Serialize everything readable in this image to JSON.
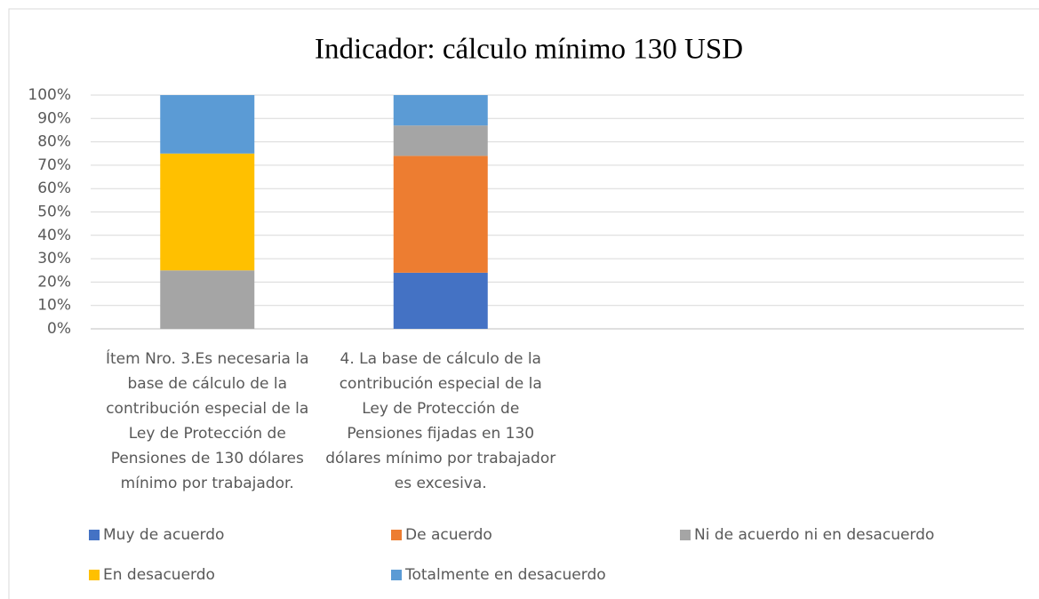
{
  "chart_data": {
    "type": "bar",
    "stacked": true,
    "title": "Indicador: cálculo mínimo 130 USD",
    "categories": [
      "Ítem Nro. 3.Es necesaria la base de cálculo de la contribución especial de la Ley de Protección de Pensiones de 130 dólares mínimo por trabajador.",
      "4. La base de cálculo de la contribución especial de la Ley de Protección de Pensiones fijadas en 130 dólares mínimo por trabajador es excesiva.",
      null,
      null
    ],
    "series": [
      {
        "name": "Muy de acuerdo",
        "color": "#4472c4",
        "values": [
          0,
          24,
          null,
          null
        ]
      },
      {
        "name": "De acuerdo",
        "color": "#ed7d31",
        "values": [
          0,
          50,
          null,
          null
        ]
      },
      {
        "name": "Ni de acuerdo ni en desacuerdo",
        "color": "#a5a5a5",
        "values": [
          25,
          13,
          null,
          null
        ]
      },
      {
        "name": "En desacuerdo",
        "color": "#ffc000",
        "values": [
          50,
          0,
          null,
          null
        ]
      },
      {
        "name": "Totalmente en desacuerdo",
        "color": "#5b9bd5",
        "values": [
          25,
          13,
          null,
          null
        ]
      }
    ],
    "ylim": [
      0,
      100
    ],
    "yticks": [
      {
        "value": 0,
        "label": "0%"
      },
      {
        "value": 10,
        "label": "10%"
      },
      {
        "value": 20,
        "label": "20%"
      },
      {
        "value": 30,
        "label": "30%"
      },
      {
        "value": 40,
        "label": "40%"
      },
      {
        "value": 50,
        "label": "50%"
      },
      {
        "value": 60,
        "label": "60%"
      },
      {
        "value": 70,
        "label": "70%"
      },
      {
        "value": 80,
        "label": "80%"
      },
      {
        "value": 90,
        "label": "90%"
      },
      {
        "value": 100,
        "label": "100%"
      }
    ],
    "grid": true,
    "legend": "bottom"
  }
}
